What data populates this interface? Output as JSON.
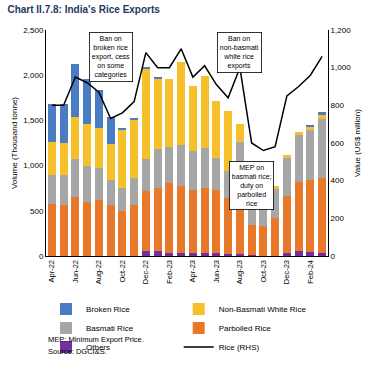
{
  "chart_data": {
    "type": "bar",
    "stacked": true,
    "title": "Chart II.7.8: India's Rice Exports",
    "y_label": "Volume (Thousand tonne)",
    "y2_label": "Value (US$ million)",
    "categories": [
      "Apr-22",
      null,
      "Jun-22",
      null,
      "Aug-22",
      null,
      "Oct-22",
      null,
      "Dec-22",
      null,
      "Feb-23",
      null,
      "Apr-23",
      null,
      "Jun-23",
      null,
      "Aug-23",
      null,
      "Oct-23",
      null,
      "Dec-23",
      null,
      "Feb-24",
      null
    ],
    "series": [
      {
        "name": "Others",
        "color": "#7030a0",
        "type": "bar",
        "values": [
          0,
          0,
          0,
          0,
          0,
          0,
          0,
          0,
          60,
          50,
          30,
          30,
          30,
          30,
          30,
          20,
          20,
          10,
          0,
          0,
          30,
          60,
          40,
          30
        ]
      },
      {
        "name": "Parboiled Rice",
        "color": "#e8792a",
        "type": "bar",
        "values": [
          580,
          560,
          650,
          600,
          620,
          560,
          500,
          560,
          660,
          700,
          780,
          740,
          700,
          720,
          700,
          620,
          800,
          330,
          330,
          420,
          630,
          760,
          800,
          830
        ]
      },
      {
        "name": "Basmati Rice",
        "color": "#a6a6a6",
        "type": "bar",
        "values": [
          320,
          340,
          420,
          400,
          350,
          280,
          250,
          300,
          350,
          430,
          400,
          460,
          430,
          450,
          350,
          300,
          440,
          480,
          370,
          320,
          420,
          520,
          550,
          660
        ]
      },
      {
        "name": "Non-Basmati White Rice",
        "color": "#f6c02a",
        "type": "bar",
        "values": [
          360,
          350,
          470,
          460,
          450,
          400,
          650,
          650,
          1000,
          780,
          750,
          920,
          720,
          790,
          640,
          660,
          200,
          60,
          30,
          30,
          40,
          30,
          40,
          50
        ]
      },
      {
        "name": "Broken Rice",
        "color": "#4a7cc4",
        "type": "bar",
        "values": [
          420,
          430,
          580,
          500,
          420,
          300,
          10,
          10,
          20,
          10,
          0,
          0,
          0,
          0,
          0,
          0,
          0,
          0,
          0,
          0,
          0,
          0,
          10,
          20
        ]
      },
      {
        "name": "Rice (RHS)",
        "color": "#000000",
        "type": "line",
        "axis": "y2",
        "values": [
          800,
          800,
          950,
          920,
          870,
          730,
          760,
          820,
          1080,
          1000,
          1000,
          1100,
          950,
          1010,
          910,
          840,
          1000,
          600,
          560,
          580,
          850,
          900,
          960,
          1060
        ]
      }
    ],
    "ylim": [
      0,
      2500
    ],
    "yticks": [
      0,
      500,
      {
        "value": 1000,
        "label": "1,000"
      },
      {
        "value": 1500,
        "label": "1,500"
      },
      {
        "value": 2000,
        "label": "2,000"
      },
      {
        "value": 2500,
        "label": "2,500"
      }
    ],
    "y2lim": [
      0,
      1200
    ],
    "y2ticks": [
      0,
      200,
      400,
      600,
      800,
      {
        "value": 1000,
        "label": "1,000"
      },
      {
        "value": 1200,
        "label": "1,200"
      }
    ],
    "grid": false,
    "legend": "bottom",
    "annotations": [
      {
        "x": 5,
        "lines": [
          "Ban on",
          "broken rice",
          "export, cess",
          "on some",
          "categories"
        ]
      },
      {
        "x": 16,
        "lines": [
          "Ban on",
          "non-basmati",
          "white rice",
          "exports"
        ]
      },
      {
        "x": 17,
        "lines": [
          "MEP on",
          "basmati rice;",
          "duty on",
          "parboiled",
          "rice"
        ]
      }
    ],
    "notes": [
      "MEP: Minimum Export Price.",
      "Source: DGCI&S."
    ]
  }
}
